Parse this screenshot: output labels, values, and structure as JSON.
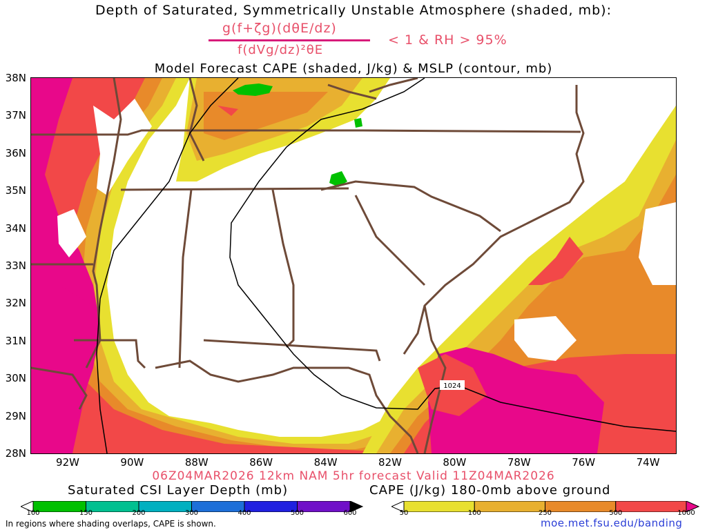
{
  "titles": {
    "line1": "Depth of Saturated, Symmetrically Unstable Atmosphere (shaded, mb):",
    "numerator": "g(f+ζg)(dθE/dz)",
    "denominator": "f(dVg/dz)²θE",
    "condition": "< 1 & RH > 95%",
    "line2": "Model Forecast CAPE (shaded, J/kg) & MSLP (contour, mb)"
  },
  "map": {
    "lat_labels": [
      "38N",
      "37N",
      "36N",
      "35N",
      "34N",
      "33N",
      "32N",
      "31N",
      "30N",
      "29N",
      "28N"
    ],
    "lon_labels": [
      "92W",
      "90W",
      "88W",
      "86W",
      "84W",
      "82W",
      "80W",
      "78W",
      "76W",
      "74W"
    ],
    "isobar_label": "1024",
    "colors": {
      "cape_50": "#e8e030",
      "cape_100": "#e8b030",
      "cape_250": "#e88a2a",
      "cape_500": "#f24848",
      "cape_1000": "#e8088a",
      "csi": "#00c000",
      "borders": "#6e4a38"
    }
  },
  "valid": "06Z04MAR2026 12km NAM 5hr forecast Valid 11Z04MAR2026",
  "colorbars": {
    "csi_title": "Saturated CSI Layer Depth (mb)",
    "csi_labels": [
      "100",
      "150",
      "200",
      "300",
      "400",
      "500",
      "600"
    ],
    "csi_colors": [
      "#ffffff",
      "#00c000",
      "#00c090",
      "#00b0c0",
      "#1d6fd8",
      "#2020e0",
      "#7010c8",
      "#000000"
    ],
    "cape_title": "CAPE (J/kg) 180-0mb above ground",
    "cape_labels": [
      "50",
      "100",
      "250",
      "500",
      "1000"
    ],
    "cape_colors": [
      "#ffffff",
      "#e8e030",
      "#e8b030",
      "#e88a2a",
      "#f24848",
      "#e8088a"
    ]
  },
  "footer": {
    "note": "In regions where shading overlaps, CAPE is shown.",
    "url": "moe.met.fsu.edu/banding"
  }
}
